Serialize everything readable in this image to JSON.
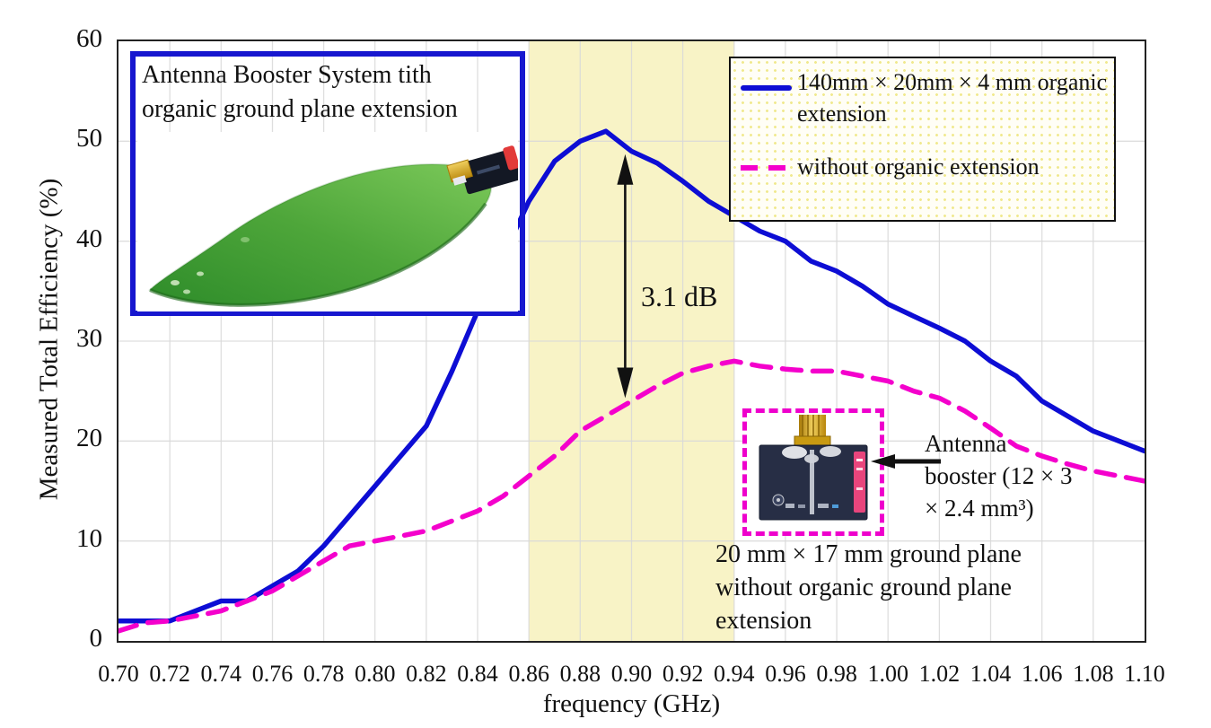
{
  "chart_data": {
    "type": "line",
    "xlabel": "frequency (GHz)",
    "ylabel": "Measured Total Efficiency (%)",
    "xlim": [
      0.7,
      1.1
    ],
    "ylim": [
      0,
      60
    ],
    "x_tick_step": 0.02,
    "y_tick_step": 10,
    "grid": true,
    "grid_color": "#d9d9d9",
    "x_ticks": [
      "0.70",
      "0.72",
      "0.74",
      "0.76",
      "0.78",
      "0.80",
      "0.82",
      "0.84",
      "0.86",
      "0.88",
      "0.90",
      "0.92",
      "0.94",
      "0.96",
      "0.98",
      "1.00",
      "1.02",
      "1.04",
      "1.06",
      "1.08",
      "1.10"
    ],
    "y_ticks": [
      "0",
      "10",
      "20",
      "30",
      "40",
      "50",
      "60"
    ],
    "highlight_band": {
      "x_start": 0.86,
      "x_end": 0.94,
      "color": "#f8f3c6"
    },
    "series": [
      {
        "name": "140mm × 20mm × 4 mm organic extension",
        "color": "#0d0dd4",
        "style": "solid",
        "x": [
          0.7,
          0.71,
          0.72,
          0.73,
          0.74,
          0.75,
          0.76,
          0.77,
          0.78,
          0.79,
          0.8,
          0.81,
          0.82,
          0.83,
          0.84,
          0.85,
          0.86,
          0.87,
          0.88,
          0.89,
          0.9,
          0.91,
          0.92,
          0.93,
          0.94,
          0.95,
          0.96,
          0.97,
          0.98,
          0.99,
          1.0,
          1.01,
          1.02,
          1.03,
          1.04,
          1.05,
          1.06,
          1.07,
          1.08,
          1.09,
          1.1
        ],
        "values": [
          2,
          2,
          2,
          3,
          4,
          4,
          5.5,
          7,
          9.5,
          12.5,
          15.5,
          18.5,
          21.5,
          27,
          33,
          38.5,
          44,
          48,
          50,
          51,
          49,
          47.8,
          46,
          44,
          42.5,
          41,
          40,
          38,
          37,
          35.5,
          33.7,
          32.5,
          31.3,
          30,
          28,
          26.5,
          24,
          22.5,
          21,
          20,
          19
        ]
      },
      {
        "name": "without organic extension",
        "color": "#f400cc",
        "style": "dashed",
        "x": [
          0.7,
          0.71,
          0.72,
          0.73,
          0.74,
          0.75,
          0.76,
          0.77,
          0.78,
          0.79,
          0.8,
          0.81,
          0.82,
          0.83,
          0.84,
          0.85,
          0.86,
          0.87,
          0.88,
          0.89,
          0.9,
          0.91,
          0.92,
          0.93,
          0.94,
          0.95,
          0.96,
          0.97,
          0.98,
          0.99,
          1.0,
          1.01,
          1.02,
          1.03,
          1.04,
          1.05,
          1.06,
          1.07,
          1.08,
          1.09,
          1.1
        ],
        "values": [
          1,
          1.8,
          2,
          2.5,
          3,
          4,
          5,
          6.5,
          8,
          9.5,
          10,
          10.5,
          11,
          12,
          13,
          14.5,
          16.5,
          18.5,
          21,
          22.5,
          24,
          25.5,
          26.8,
          27.5,
          28,
          27.5,
          27.2,
          27,
          27,
          26.5,
          26,
          25,
          24.3,
          23,
          21.3,
          19.5,
          18.5,
          17.7,
          17,
          16.5,
          16
        ],
        "dash": "21 13"
      }
    ],
    "annotation": {
      "label": "3.1 dB",
      "arrow_x": 0.8975,
      "arrow_top_value": 48.7,
      "arrow_bottom_value": 24.3
    },
    "legend_position": "top-right"
  },
  "legend": {
    "item1_lines": [
      "140mm × 20mm × 4 mm organic",
      "extension"
    ],
    "item2_label": "without organic extension"
  },
  "insets": {
    "booster_system": {
      "caption_lines": [
        "Antenna Booster System tith",
        "organic ground plane extension"
      ]
    },
    "no_extension": {
      "booster_label_lines": [
        "Antenna",
        "booster (12 × 3",
        "× 2.4 mm³)"
      ],
      "caption_lines": [
        "20 mm × 17 mm ground plane",
        "without organic ground plane",
        "extension"
      ]
    }
  },
  "colors": {
    "band": "#f8f3c6",
    "blue_line": "#0d0dd4",
    "magenta_line": "#f400cc",
    "inset_border_blue": "#1717cf",
    "inset_border_magenta": "#ee00cc"
  }
}
